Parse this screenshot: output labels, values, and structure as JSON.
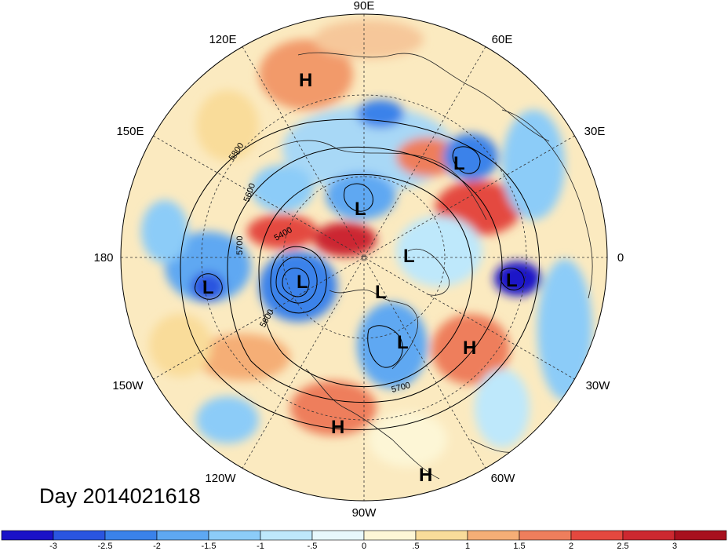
{
  "title_text": "Day 2014021618",
  "longitude_labels": {
    "n": "90E",
    "ne": "60E",
    "e30": "30E",
    "e": "0",
    "se30": "30W",
    "se": "60W",
    "s": "90W",
    "sw": "120W",
    "w150": "150W",
    "w": "180",
    "nw150": "150E",
    "nw": "120E"
  },
  "contour_labels": [
    "5800",
    "5600",
    "5700",
    "5400",
    "5600",
    "5700"
  ],
  "centers": {
    "h_north": "H",
    "l_russia": "L",
    "l_siberia": "L",
    "l_arctic": "L",
    "l_europe": "L",
    "l_pacific": "L",
    "l_alaska": "L",
    "l_canada": "L",
    "l_hudson": "L",
    "h_atlantic": "H",
    "h_mexico": "H",
    "h_caribbean": "H"
  },
  "colorbar": {
    "ticks": [
      "-3",
      "-2.5",
      "-2",
      "-1.5",
      "-1",
      "-.5",
      "0",
      ".5",
      "1",
      "1.5",
      "2",
      "2.5",
      "3"
    ],
    "colors": [
      "#1a12c8",
      "#2a55e0",
      "#3a82ea",
      "#5ea8f2",
      "#8cccf8",
      "#bee8fb",
      "#e8f8fc",
      "#fdf6d6",
      "#f9dc9a",
      "#f5ae76",
      "#ee7e5c",
      "#e4483f",
      "#cc2830",
      "#a8101e"
    ]
  }
}
